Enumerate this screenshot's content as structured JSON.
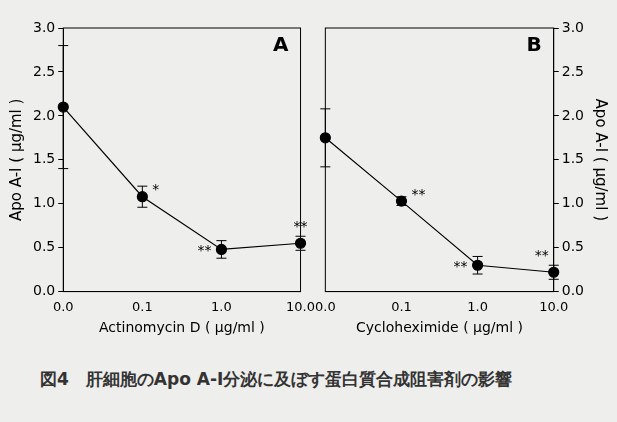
{
  "caption": "図4　肝細胞のApo A-I分泌に及ぼす蛋白質合成阻害剤の影響",
  "chart_data": [
    {
      "type": "line",
      "title": "A",
      "x_label": "Actinomycin D ( μg/ml )",
      "y_label": "Apo A-I ( μg/ml )",
      "categories": [
        "0.0",
        "0.1",
        "1.0",
        "10.0"
      ],
      "values": [
        2.1,
        1.08,
        0.48,
        0.55
      ],
      "errors": [
        0.7,
        0.12,
        0.1,
        0.08
      ],
      "annotations": [
        null,
        "*",
        "**",
        "**"
      ],
      "color": "#000000",
      "marker": "circle",
      "grid": false,
      "ylim": [
        0,
        3
      ],
      "yticks": [
        {
          "value": 0,
          "label": "0.0"
        },
        0.5,
        {
          "value": 1,
          "label": "1.0"
        },
        1.5,
        {
          "value": 2,
          "label": "2.0"
        },
        2.5,
        {
          "value": 3,
          "label": "3.0"
        }
      ]
    },
    {
      "type": "line",
      "title": "B",
      "x_label": "Cycloheximide ( μg/ml )",
      "y_label": "Apo A-I ( μg/ml )",
      "categories": [
        "0.0",
        "0.1",
        "1.0",
        "10.0"
      ],
      "values": [
        1.75,
        1.03,
        0.3,
        0.22
      ],
      "errors": [
        0.33,
        0.05,
        0.1,
        0.08
      ],
      "annotations": [
        null,
        "**",
        "**",
        "**"
      ],
      "color": "#000000",
      "marker": "circle",
      "grid": false,
      "ylim": [
        0,
        3
      ],
      "yticks": [
        {
          "value": 0,
          "label": "0.0"
        },
        0.5,
        {
          "value": 1,
          "label": "1.0"
        },
        1.5,
        {
          "value": 2,
          "label": "2.0"
        },
        2.5,
        {
          "value": 3,
          "label": "3.0"
        }
      ]
    }
  ]
}
